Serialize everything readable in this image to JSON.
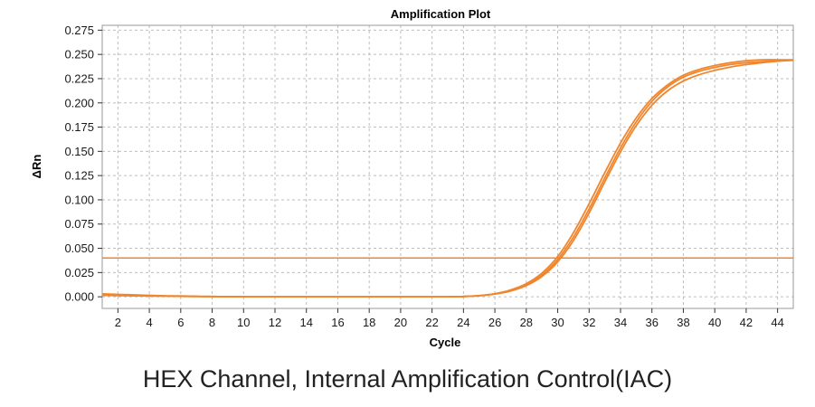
{
  "chart_data": {
    "type": "line",
    "title": "Amplification Plot",
    "xlabel": "Cycle",
    "ylabel": "ΔRn",
    "xlim": [
      1,
      45
    ],
    "ylim": [
      -0.012,
      0.28
    ],
    "x_ticks": [
      "2",
      "4",
      "6",
      "8",
      "10",
      "12",
      "14",
      "16",
      "18",
      "20",
      "22",
      "24",
      "26",
      "28",
      "30",
      "32",
      "34",
      "36",
      "38",
      "40",
      "42",
      "44"
    ],
    "y_ticks": [
      "0.000",
      "0.025",
      "0.050",
      "0.075",
      "0.100",
      "0.125",
      "0.150",
      "0.175",
      "0.200",
      "0.225",
      "0.250",
      "0.275"
    ],
    "grid": true,
    "threshold": 0.04,
    "x": [
      1,
      2,
      3,
      4,
      5,
      6,
      7,
      8,
      9,
      10,
      11,
      12,
      13,
      14,
      15,
      16,
      17,
      18,
      19,
      20,
      21,
      22,
      23,
      24,
      25,
      26,
      27,
      28,
      29,
      30,
      31,
      32,
      33,
      34,
      35,
      36,
      37,
      38,
      39,
      40,
      41,
      42,
      43,
      44,
      45
    ],
    "series": [
      {
        "values": [
          0.003,
          0.0025,
          0.002,
          0.0015,
          0.001,
          0.0008,
          0.0005,
          0.0003,
          0.0002,
          0.0001,
          0,
          0,
          0,
          0,
          0,
          0,
          0,
          0,
          0,
          0,
          0,
          0,
          0,
          0.0003,
          0.0012,
          0.003,
          0.0065,
          0.0125,
          0.0225,
          0.0385,
          0.0615,
          0.0905,
          0.1225,
          0.1535,
          0.1805,
          0.2015,
          0.2165,
          0.2265,
          0.2325,
          0.2365,
          0.2395,
          0.2415,
          0.2425,
          0.2435,
          0.244
        ]
      },
      {
        "values": [
          0.002,
          0.0018,
          0.0015,
          0.0012,
          0.001,
          0.0008,
          0.0005,
          0.0003,
          0.0002,
          0.0001,
          0,
          0,
          0,
          0,
          0,
          0,
          0,
          0,
          0,
          0,
          0,
          0,
          0,
          0.0003,
          0.0012,
          0.0032,
          0.007,
          0.0135,
          0.0245,
          0.0415,
          0.066,
          0.096,
          0.128,
          0.1585,
          0.1845,
          0.2045,
          0.2185,
          0.2285,
          0.2345,
          0.2385,
          0.2415,
          0.2435,
          0.2445,
          0.2445,
          0.2445
        ]
      },
      {
        "values": [
          0.0015,
          0.0012,
          0.001,
          0.0008,
          0.0006,
          0.0005,
          0.0003,
          0.0002,
          0.0001,
          0,
          0,
          0,
          0,
          0,
          0,
          0,
          0,
          0,
          0,
          0,
          0,
          0,
          0,
          0.0003,
          0.0011,
          0.0028,
          0.006,
          0.0115,
          0.021,
          0.036,
          0.058,
          0.0865,
          0.1185,
          0.1495,
          0.1765,
          0.1975,
          0.2125,
          0.2225,
          0.229,
          0.2335,
          0.237,
          0.2395,
          0.2415,
          0.243,
          0.244
        ]
      }
    ]
  },
  "caption": "HEX Channel, Internal Amplification Control(IAC)",
  "colors": {
    "series": "#f0862d",
    "threshold": "#f0862d",
    "grid": "#bdbdbd",
    "frame": "#9a9a9a"
  }
}
